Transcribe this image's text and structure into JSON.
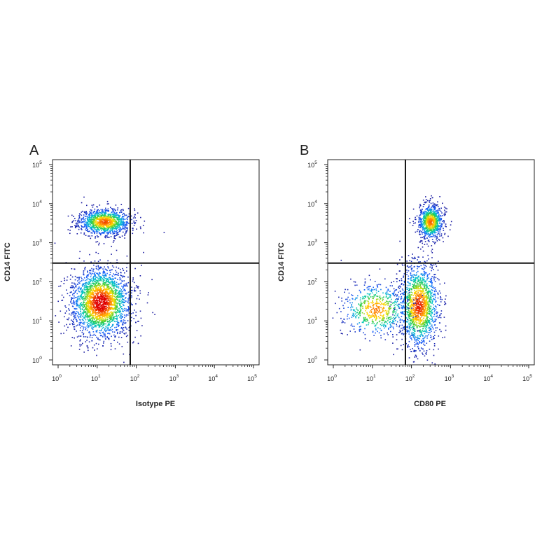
{
  "chart_data": [
    {
      "type": "scatter",
      "panel_label": "A",
      "xlabel": "Isotype PE",
      "ylabel": "CD14 FITC",
      "x_scale": "log",
      "y_scale": "log",
      "xlim": [
        1,
        100000
      ],
      "ylim": [
        1,
        100000
      ],
      "x_ticks": [
        1,
        10,
        100,
        1000,
        10000,
        100000
      ],
      "y_ticks": [
        1,
        10,
        100,
        1000,
        10000,
        100000
      ],
      "quadrant_gate": {
        "x": 70,
        "y": 300
      },
      "populations": [
        {
          "name": "CD14 high / Isotype low",
          "center": {
            "x": 15,
            "y": 3500
          },
          "relative_density": 0.35
        },
        {
          "name": "CD14 low / Isotype low",
          "center": {
            "x": 12,
            "y": 30
          },
          "relative_density": 0.65
        }
      ],
      "grid": false,
      "legend": "none",
      "density_colors": [
        "#1a1aa0",
        "#1e64ff",
        "#00c8c8",
        "#2ecc40",
        "#ffe000",
        "#ff8000",
        "#e00000"
      ]
    },
    {
      "type": "scatter",
      "panel_label": "B",
      "xlabel": "CD80 PE",
      "ylabel": "CD14 FITC",
      "x_scale": "log",
      "y_scale": "log",
      "xlim": [
        1,
        100000
      ],
      "ylim": [
        1,
        100000
      ],
      "x_ticks": [
        1,
        10,
        100,
        1000,
        10000,
        100000
      ],
      "y_ticks": [
        1,
        10,
        100,
        1000,
        10000,
        100000
      ],
      "quadrant_gate": {
        "x": 70,
        "y": 300
      },
      "populations": [
        {
          "name": "CD14 high / CD80 high",
          "center": {
            "x": 300,
            "y": 3500
          },
          "relative_density": 0.3
        },
        {
          "name": "CD14 low / CD80 mid",
          "center": {
            "x": 150,
            "y": 25
          },
          "relative_density": 0.45
        },
        {
          "name": "CD14 low / CD80 low",
          "center": {
            "x": 12,
            "y": 20
          },
          "relative_density": 0.25
        }
      ],
      "grid": false,
      "legend": "none",
      "density_colors": [
        "#1a1aa0",
        "#1e64ff",
        "#00c8c8",
        "#2ecc40",
        "#ffe000",
        "#ff8000",
        "#e00000"
      ]
    }
  ]
}
